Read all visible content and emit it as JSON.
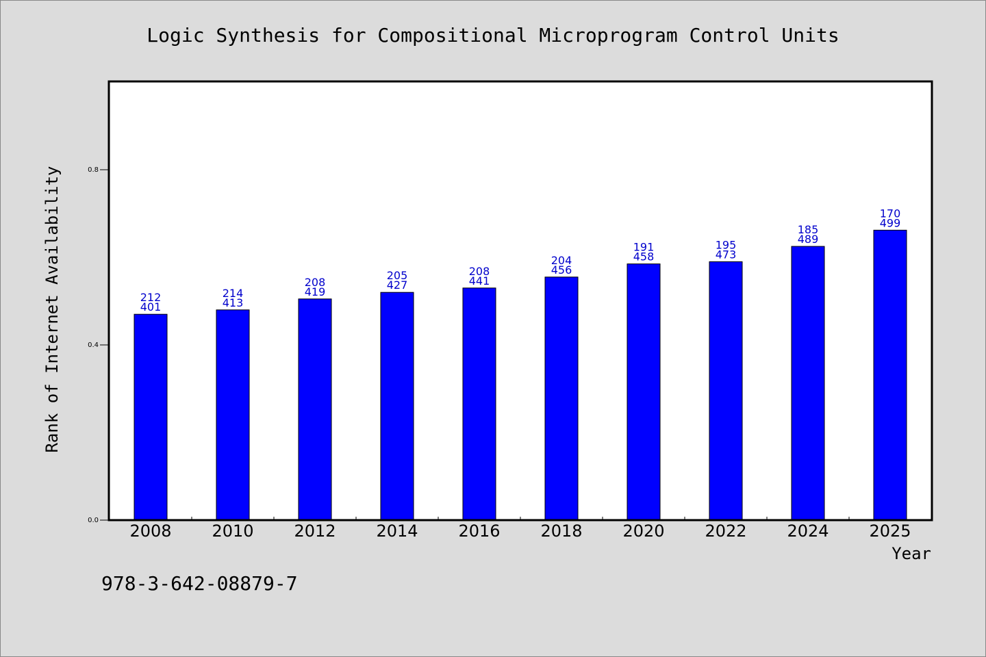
{
  "chart_data": {
    "type": "bar",
    "title": "Logic Synthesis for Compositional Microprogram Control Units",
    "xlabel": "Year",
    "ylabel": "Rank of Internet Availability",
    "categories": [
      "2008",
      "2010",
      "2012",
      "2014",
      "2016",
      "2018",
      "2020",
      "2022",
      "2024",
      "2025"
    ],
    "values": [
      0.47,
      0.48,
      0.505,
      0.52,
      0.53,
      0.555,
      0.585,
      0.59,
      0.625,
      0.662
    ],
    "labels_top": [
      "212",
      "214",
      "208",
      "205",
      "208",
      "204",
      "191",
      "195",
      "185",
      "170"
    ],
    "labels_bottom": [
      "401",
      "413",
      "419",
      "427",
      "441",
      "456",
      "458",
      "473",
      "489",
      "499"
    ],
    "ylim": [
      0,
      1.0
    ],
    "yticks": [
      0.0,
      0.4,
      0.8
    ],
    "ytick_labels": [
      "0.0",
      "0.4",
      "0.8"
    ],
    "bar_color": "#0000ff",
    "label_color": "#0000cc",
    "grid": false
  },
  "footer": {
    "isbn": "978-3-642-08879-7"
  }
}
